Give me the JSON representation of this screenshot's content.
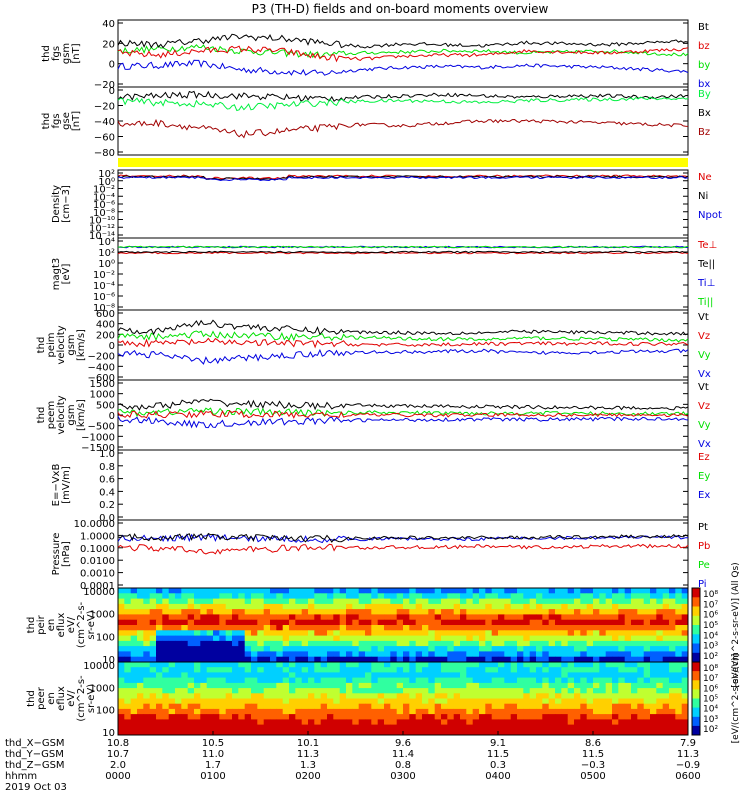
{
  "title": "P3 (TH-D) fields and on-board moments overview",
  "colors": {
    "black": "#000000",
    "red": "#e00000",
    "green": "#00e000",
    "blue": "#0000e0",
    "darkred": "#a00000",
    "lime": "#00f040",
    "yellow": "#ffff00"
  },
  "chart_data": [
    {
      "type": "line",
      "panel": "fgs_gsm",
      "ylabel_lines": [
        "thd",
        "fgs",
        "gsm",
        "[nT]"
      ],
      "ylim": [
        -25,
        40
      ],
      "yticks": [
        "40",
        "20",
        "0",
        "−20"
      ],
      "legend": [
        {
          "label": "Bt",
          "color": "#000000"
        },
        {
          "label": "bz",
          "color": "#e00000"
        },
        {
          "label": "by",
          "color": "#00e000"
        },
        {
          "label": "bx",
          "color": "#0000e0"
        }
      ],
      "series": [
        {
          "name": "Bt",
          "values": [
            18,
            16,
            20,
            24,
            22,
            18,
            14,
            17,
            16,
            15,
            18,
            17,
            16,
            18,
            20
          ]
        },
        {
          "name": "bz",
          "values": [
            8,
            6,
            10,
            12,
            10,
            4,
            2,
            5,
            6,
            6,
            10,
            9,
            8,
            10,
            12
          ]
        },
        {
          "name": "by",
          "values": [
            10,
            12,
            14,
            10,
            8,
            6,
            8,
            9,
            10,
            10,
            8,
            9,
            10,
            8,
            6
          ]
        },
        {
          "name": "bx",
          "values": [
            -5,
            -4,
            -2,
            -8,
            -10,
            -12,
            -8,
            -6,
            -5,
            -6,
            -4,
            -5,
            -6,
            -8,
            -10
          ]
        }
      ]
    },
    {
      "type": "line",
      "panel": "fgs_gse",
      "ylabel_lines": [
        "thd",
        "fgs",
        "gse",
        "[nT]"
      ],
      "ylim": [
        -85,
        15
      ],
      "yticks": [
        "0",
        "−20",
        "−40",
        "−60",
        "−80"
      ],
      "legend": [
        {
          "label": "By",
          "color": "#00f040"
        },
        {
          "label": "Bx",
          "color": "#000000"
        },
        {
          "label": "Bz",
          "color": "#a00000"
        }
      ],
      "series": [
        {
          "name": "By",
          "values": [
            -5,
            -8,
            -10,
            -15,
            -12,
            -8,
            -6,
            -5,
            -6,
            -8,
            -5,
            -4,
            -3,
            -2,
            -2
          ]
        },
        {
          "name": "Bx",
          "values": [
            0,
            2,
            4,
            2,
            0,
            -2,
            0,
            2,
            4,
            2,
            0,
            2,
            2,
            0,
            2
          ]
        },
        {
          "name": "Bz",
          "values": [
            -40,
            -38,
            -45,
            -55,
            -50,
            -45,
            -40,
            -42,
            -38,
            -35,
            -35,
            -36,
            -38,
            -40,
            -42
          ]
        }
      ]
    },
    {
      "type": "line",
      "panel": "density",
      "ylabel_lines": [
        "Density",
        "[cm−3]"
      ],
      "ylim_label": "log",
      "yticks": [
        "10²",
        "10⁰",
        "10⁻²",
        "10⁻⁴",
        "10⁻⁶",
        "10⁻⁸",
        "10⁻¹⁰",
        "10⁻¹²",
        "10⁻¹⁴"
      ],
      "legend": [
        {
          "label": "Ne",
          "color": "#e00000"
        },
        {
          "label": "Ni",
          "color": "#000000"
        },
        {
          "label": "Npot",
          "color": "#0000e0"
        }
      ]
    },
    {
      "type": "line",
      "panel": "temperature",
      "ylabel_lines": [
        "magt3",
        "[eV]"
      ],
      "ylim_label": "log",
      "yticks": [
        "10⁴",
        "10²",
        "10⁰",
        "10⁻²",
        "10⁻⁴",
        "10⁻⁶",
        "10⁻⁸"
      ],
      "legend": [
        {
          "label": "Te⊥",
          "color": "#e00000"
        },
        {
          "label": "Te||",
          "color": "#000000"
        },
        {
          "label": "Ti⊥",
          "color": "#0000e0"
        },
        {
          "label": "Ti||",
          "color": "#00e000"
        }
      ]
    },
    {
      "type": "line",
      "panel": "peim_velocity",
      "ylabel_lines": [
        "thd",
        "peim",
        "velocity",
        "gsm",
        "[km/s]"
      ],
      "ylim": [
        -650,
        650
      ],
      "yticks": [
        "600",
        "400",
        "200",
        "0",
        "−200",
        "−400",
        "−600"
      ],
      "legend": [
        {
          "label": "Vt",
          "color": "#000000"
        },
        {
          "label": "Vz",
          "color": "#e00000"
        },
        {
          "label": "Vy",
          "color": "#00e000"
        },
        {
          "label": "Vx",
          "color": "#0000e0"
        }
      ],
      "series": [
        {
          "name": "Vt",
          "values": [
            300,
            250,
            420,
            350,
            300,
            260,
            240,
            230,
            220,
            230,
            250,
            240,
            230,
            220,
            210
          ]
        },
        {
          "name": "Vz",
          "values": [
            40,
            30,
            60,
            50,
            30,
            20,
            10,
            0,
            10,
            20,
            30,
            20,
            30,
            20,
            30
          ]
        },
        {
          "name": "Vy",
          "values": [
            150,
            160,
            200,
            180,
            160,
            150,
            140,
            120,
            110,
            100,
            130,
            120,
            110,
            100,
            90
          ]
        },
        {
          "name": "Vx",
          "values": [
            -150,
            -180,
            -300,
            -250,
            -200,
            -150,
            -140,
            -130,
            -120,
            -110,
            -150,
            -140,
            -130,
            -120,
            -110
          ]
        }
      ]
    },
    {
      "type": "line",
      "panel": "peem_velocity",
      "ylabel_lines": [
        "thd",
        "peem",
        "velocity",
        "gsm",
        "[km/s]"
      ],
      "ylim": [
        -1550,
        1550
      ],
      "yticks": [
        "1500",
        "1000",
        "500",
        "0",
        "−500",
        "−1000",
        "−1500"
      ],
      "legend": [
        {
          "label": "Vt",
          "color": "#000000"
        },
        {
          "label": "Vz",
          "color": "#e00000"
        },
        {
          "label": "Vy",
          "color": "#00e000"
        },
        {
          "label": "Vx",
          "color": "#0000e0"
        }
      ],
      "series": [
        {
          "name": "Vt",
          "values": [
            350,
            400,
            600,
            500,
            450,
            400,
            420,
            400,
            380,
            370,
            350,
            330,
            320,
            310,
            300
          ]
        },
        {
          "name": "Vz",
          "values": [
            0,
            20,
            50,
            30,
            10,
            0,
            10,
            0,
            -10,
            0,
            10,
            0,
            0,
            10,
            0
          ]
        },
        {
          "name": "Vy",
          "values": [
            100,
            120,
            200,
            150,
            120,
            100,
            110,
            100,
            90,
            80,
            90,
            80,
            70,
            60,
            60
          ]
        },
        {
          "name": "Vx",
          "values": [
            -200,
            -250,
            -450,
            -350,
            -300,
            -250,
            -230,
            -220,
            -200,
            -190,
            -200,
            -190,
            -180,
            -170,
            -160
          ]
        }
      ]
    },
    {
      "type": "line",
      "panel": "efield",
      "ylabel_lines": [
        "E=−VxB",
        "[mV/m]"
      ],
      "ylim": [
        0,
        1
      ],
      "yticks": [
        "1.0",
        "0.8",
        "0.6",
        "0.4",
        "0.2",
        "0.0"
      ],
      "legend": [
        {
          "label": "Ez",
          "color": "#e00000"
        },
        {
          "label": "Ey",
          "color": "#00e000"
        },
        {
          "label": "Ex",
          "color": "#0000e0"
        }
      ]
    },
    {
      "type": "line",
      "panel": "pressure",
      "ylabel_lines": [
        "Pressure",
        "[nPa]"
      ],
      "scale": "log",
      "ylim": [
        0.0001,
        10
      ],
      "yticks": [
        "10.0000",
        "1.0000",
        "0.1000",
        "0.0100",
        "0.0010",
        "0.0001"
      ],
      "legend": [
        {
          "label": "Pt",
          "color": "#000000"
        },
        {
          "label": "Pb",
          "color": "#e00000"
        },
        {
          "label": "Pe",
          "color": "#00e000"
        },
        {
          "label": "Pi",
          "color": "#0000e0"
        }
      ],
      "series": [
        {
          "name": "Pt",
          "values": [
            0.5,
            0.55,
            0.6,
            0.5,
            0.45,
            0.42,
            0.45,
            0.5,
            0.48,
            0.5,
            0.52,
            0.55,
            0.6,
            0.62,
            0.65
          ]
        },
        {
          "name": "Pb",
          "values": [
            0.1,
            0.08,
            0.05,
            0.06,
            0.08,
            0.1,
            0.09,
            0.1,
            0.1,
            0.12,
            0.1,
            0.1,
            0.12,
            0.12,
            0.12
          ]
        },
        {
          "name": "Pi",
          "values": [
            0.4,
            0.45,
            0.55,
            0.45,
            0.4,
            0.38,
            0.4,
            0.42,
            0.4,
            0.42,
            0.45,
            0.48,
            0.5,
            0.52,
            0.55
          ]
        }
      ]
    },
    {
      "type": "heatmap",
      "panel": "peir_eflux",
      "ylabel_lines": [
        "thd",
        "peir",
        "en",
        "eflux",
        "eV/",
        "(cm^2-s-",
        "sr-eV)"
      ],
      "scale": "log",
      "yticks": [
        "10000",
        "1000",
        "100",
        "10"
      ]
    },
    {
      "type": "heatmap",
      "panel": "peer_eflux",
      "ylabel_lines": [
        "thd",
        "peer",
        "en",
        "eflux",
        "eV/",
        "(cm^2-s-",
        "sr-eV)"
      ],
      "scale": "log",
      "yticks": [
        "10000",
        "1000",
        "100",
        "10"
      ]
    }
  ],
  "colorbars": [
    {
      "ticks": [
        "10⁸",
        "10⁷",
        "10⁶",
        "10⁵",
        "10⁴",
        "10³",
        "10²"
      ],
      "label": "[eV/(cm^2-s-sr-eV)] (All Qs)"
    },
    {
      "ticks": [
        "10⁸",
        "10⁷",
        "10⁶",
        "10⁵",
        "10⁴",
        "10³",
        "10²"
      ],
      "label": "[eV/(cm^2-s-sr-eV)]"
    }
  ],
  "xaxis": {
    "row_labels": [
      "thd_X−GSM",
      "thd_Y−GSM",
      "thd_Z−GSM",
      "hhmm",
      "2019 Oct 03"
    ],
    "x_gsm": [
      "10.8",
      "10.5",
      "10.1",
      "9.6",
      "9.1",
      "8.6",
      "7.9"
    ],
    "y_gsm": [
      "10.7",
      "11.0",
      "11.3",
      "11.4",
      "11.5",
      "11.5",
      "11.3"
    ],
    "z_gsm": [
      "2.0",
      "1.7",
      "1.3",
      "0.8",
      "0.3",
      "−0.3",
      "−0.9"
    ],
    "hhmm": [
      "0000",
      "0100",
      "0200",
      "0300",
      "0400",
      "0500",
      "0600"
    ]
  }
}
